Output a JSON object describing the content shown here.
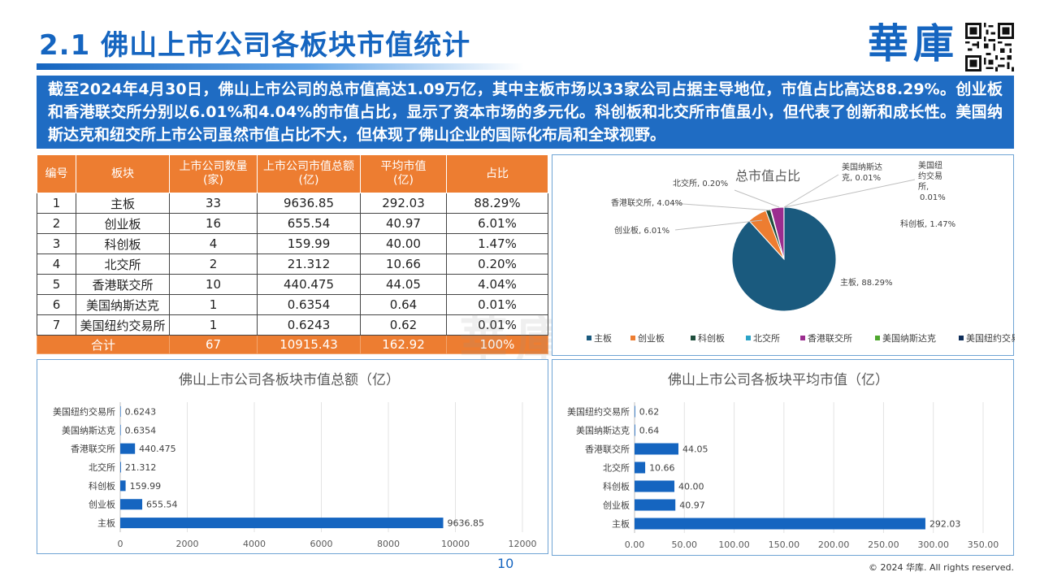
{
  "header": {
    "title": "2.1 佛山上市公司各板块市值统计",
    "logo": "華庫"
  },
  "summary": "截至2024年4月30日，佛山上市公司的总市值高达1.09万亿，其中主板市场以33家公司占据主导地位，市值占比高达88.29%。创业板和香港联交所分别以6.01%和4.04%的市值占比，显示了资本市场的多元化。科创板和北交所市值虽小，但代表了创新和成长性。美国纳斯达克和纽交所上市公司虽然市值占比不大，但体现了佛山企业的国际化布局和全球视野。",
  "table": {
    "headers": [
      "编号",
      "板块",
      "上市公司数量\n(家)",
      "上市公司市值总额\n(亿)",
      "平均市值\n(亿)",
      "占比"
    ],
    "rows": [
      [
        "1",
        "主板",
        "33",
        "9636.85",
        "292.03",
        "88.29%"
      ],
      [
        "2",
        "创业板",
        "16",
        "655.54",
        "40.97",
        "6.01%"
      ],
      [
        "3",
        "科创板",
        "4",
        "159.99",
        "40.00",
        "1.47%"
      ],
      [
        "4",
        "北交所",
        "2",
        "21.312",
        "10.66",
        "0.20%"
      ],
      [
        "5",
        "香港联交所",
        "10",
        "440.475",
        "44.05",
        "4.04%"
      ],
      [
        "6",
        "美国纳斯达克",
        "1",
        "0.6354",
        "0.64",
        "0.01%"
      ],
      [
        "7",
        "美国纽约交易所",
        "1",
        "0.6243",
        "0.62",
        "0.01%"
      ]
    ],
    "total": [
      "合计",
      "67",
      "10915.43",
      "162.92",
      "100%"
    ]
  },
  "chart_data": [
    {
      "type": "pie",
      "title": "总市值占比",
      "categories": [
        "主板",
        "创业板",
        "科创板",
        "北交所",
        "香港联交所",
        "美国纳斯达克",
        "美国纽约交易所"
      ],
      "values": [
        88.29,
        6.01,
        1.47,
        0.2,
        4.04,
        0.01,
        0.01
      ],
      "labels": [
        "主板, 88.29%",
        "创业板, 6.01%",
        "科创板, 1.47%",
        "北交所, 0.20%",
        "香港联交所, 4.04%",
        "美国纳斯达克, 0.01%",
        "美国纽约交易所, 0.01%"
      ],
      "colors": [
        "#1a5a7e",
        "#ed7d31",
        "#1f4e3d",
        "#2ba3c7",
        "#9b2d8f",
        "#4ea72e",
        "#0e2d5a"
      ],
      "legend": "bottom"
    },
    {
      "type": "bar",
      "orientation": "horizontal",
      "title": "佛山上市公司各板块市值总额（亿）",
      "categories": [
        "美国纽约交易所",
        "美国纳斯达克",
        "香港联交所",
        "北交所",
        "科创板",
        "创业板",
        "主板"
      ],
      "values": [
        0.6243,
        0.6354,
        440.475,
        21.312,
        159.99,
        655.54,
        9636.85
      ],
      "value_labels": [
        "0.6243",
        "0.6354",
        "440.475",
        "21.312",
        "159.99",
        "655.54",
        "9636.85"
      ],
      "xlim": [
        0,
        12000
      ],
      "ticks": [
        "0",
        "2000",
        "4000",
        "6000",
        "8000",
        "10000",
        "12000"
      ],
      "tick_values": [
        0,
        2000,
        4000,
        6000,
        8000,
        10000,
        12000
      ],
      "color": "#1565c0"
    },
    {
      "type": "bar",
      "orientation": "horizontal",
      "title": "佛山上市公司各板块平均市值（亿）",
      "categories": [
        "美国纽约交易所",
        "美国纳斯达克",
        "香港联交所",
        "北交所",
        "科创板",
        "创业板",
        "主板"
      ],
      "values": [
        0.62,
        0.64,
        44.05,
        10.66,
        40.0,
        40.97,
        292.03
      ],
      "value_labels": [
        "0.62",
        "0.64",
        "44.05",
        "10.66",
        "40.00",
        "40.97",
        "292.03"
      ],
      "xlim": [
        0,
        350
      ],
      "ticks": [
        "0.00",
        "50.00",
        "100.00",
        "150.00",
        "200.00",
        "250.00",
        "300.00",
        "350.00"
      ],
      "tick_values": [
        0,
        50,
        100,
        150,
        200,
        250,
        300,
        350
      ],
      "color": "#1565c0"
    }
  ],
  "footer": {
    "page": "10",
    "copyright": "© 2024 华库. All rights reserved."
  }
}
